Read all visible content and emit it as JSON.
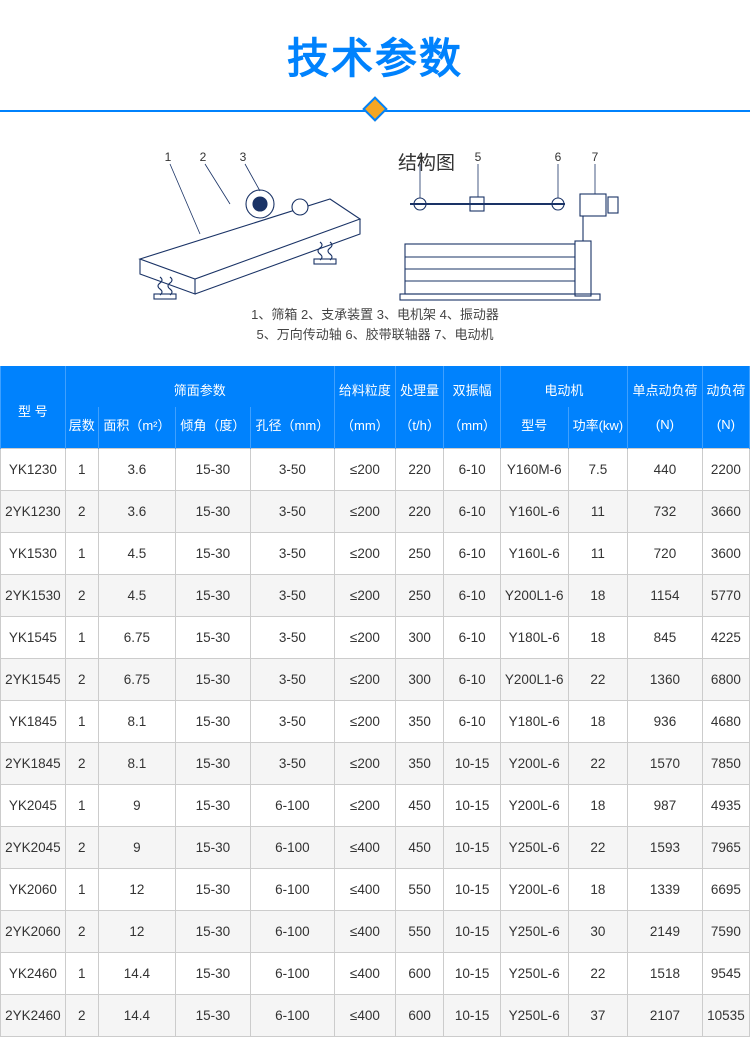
{
  "title": "技术参数",
  "diagram": {
    "label": "结构图",
    "legend_line1": "1、筛箱  2、支承装置  3、电机架  4、振动器",
    "legend_line2": "5、万向传动轴  6、胶带联轴器  7、电动机",
    "callouts_left": [
      "1",
      "2",
      "3"
    ],
    "callouts_right": [
      "4",
      "5",
      "6",
      "7"
    ]
  },
  "table": {
    "head_r1": {
      "model": "型 号",
      "screen": "筛面参数",
      "feed": "给料粒度",
      "cap": "处理量",
      "amp": "双振幅",
      "motor": "电动机",
      "sload": "单点动负荷",
      "dload": "动负荷"
    },
    "head_r2": {
      "layers": "层数",
      "area": "面积（m²）",
      "angle": "倾角（度）",
      "aperture": "孔径（mm）",
      "feed_u": "（mm）",
      "cap_u": "（t/h）",
      "amp_u": "（mm）",
      "mmodel": "型号",
      "power": "功率(kw)",
      "sload_u": "(N)",
      "dload_u": "(N)"
    },
    "rows": [
      {
        "m": "YK1230",
        "l": "1",
        "a": "3.6",
        "ang": "15-30",
        "ap": "3-50",
        "f": "≤200",
        "c": "220",
        "amp": "6-10",
        "mm": "Y160M-6",
        "p": "7.5",
        "s": "440",
        "d": "2200"
      },
      {
        "m": "2YK1230",
        "l": "2",
        "a": "3.6",
        "ang": "15-30",
        "ap": "3-50",
        "f": "≤200",
        "c": "220",
        "amp": "6-10",
        "mm": "Y160L-6",
        "p": "11",
        "s": "732",
        "d": "3660"
      },
      {
        "m": "YK1530",
        "l": "1",
        "a": "4.5",
        "ang": "15-30",
        "ap": "3-50",
        "f": "≤200",
        "c": "250",
        "amp": "6-10",
        "mm": "Y160L-6",
        "p": "11",
        "s": "720",
        "d": "3600"
      },
      {
        "m": "2YK1530",
        "l": "2",
        "a": "4.5",
        "ang": "15-30",
        "ap": "3-50",
        "f": "≤200",
        "c": "250",
        "amp": "6-10",
        "mm": "Y200L1-6",
        "p": "18",
        "s": "1154",
        "d": "5770"
      },
      {
        "m": "YK1545",
        "l": "1",
        "a": "6.75",
        "ang": "15-30",
        "ap": "3-50",
        "f": "≤200",
        "c": "300",
        "amp": "6-10",
        "mm": "Y180L-6",
        "p": "18",
        "s": "845",
        "d": "4225"
      },
      {
        "m": "2YK1545",
        "l": "2",
        "a": "6.75",
        "ang": "15-30",
        "ap": "3-50",
        "f": "≤200",
        "c": "300",
        "amp": "6-10",
        "mm": "Y200L1-6",
        "p": "22",
        "s": "1360",
        "d": "6800"
      },
      {
        "m": "YK1845",
        "l": "1",
        "a": "8.1",
        "ang": "15-30",
        "ap": "3-50",
        "f": "≤200",
        "c": "350",
        "amp": "6-10",
        "mm": "Y180L-6",
        "p": "18",
        "s": "936",
        "d": "4680"
      },
      {
        "m": "2YK1845",
        "l": "2",
        "a": "8.1",
        "ang": "15-30",
        "ap": "3-50",
        "f": "≤200",
        "c": "350",
        "amp": "10-15",
        "mm": "Y200L-6",
        "p": "22",
        "s": "1570",
        "d": "7850"
      },
      {
        "m": "YK2045",
        "l": "1",
        "a": "9",
        "ang": "15-30",
        "ap": "6-100",
        "f": "≤200",
        "c": "450",
        "amp": "10-15",
        "mm": "Y200L-6",
        "p": "18",
        "s": "987",
        "d": "4935"
      },
      {
        "m": "2YK2045",
        "l": "2",
        "a": "9",
        "ang": "15-30",
        "ap": "6-100",
        "f": "≤400",
        "c": "450",
        "amp": "10-15",
        "mm": "Y250L-6",
        "p": "22",
        "s": "1593",
        "d": "7965"
      },
      {
        "m": "YK2060",
        "l": "1",
        "a": "12",
        "ang": "15-30",
        "ap": "6-100",
        "f": "≤400",
        "c": "550",
        "amp": "10-15",
        "mm": "Y200L-6",
        "p": "18",
        "s": "1339",
        "d": "6695"
      },
      {
        "m": "2YK2060",
        "l": "2",
        "a": "12",
        "ang": "15-30",
        "ap": "6-100",
        "f": "≤400",
        "c": "550",
        "amp": "10-15",
        "mm": "Y250L-6",
        "p": "30",
        "s": "2149",
        "d": "7590"
      },
      {
        "m": "YK2460",
        "l": "1",
        "a": "14.4",
        "ang": "15-30",
        "ap": "6-100",
        "f": "≤400",
        "c": "600",
        "amp": "10-15",
        "mm": "Y250L-6",
        "p": "22",
        "s": "1518",
        "d": "9545"
      },
      {
        "m": "2YK2460",
        "l": "2",
        "a": "14.4",
        "ang": "15-30",
        "ap": "6-100",
        "f": "≤400",
        "c": "600",
        "amp": "10-15",
        "mm": "Y250L-6",
        "p": "37",
        "s": "2107",
        "d": "10535"
      }
    ]
  }
}
